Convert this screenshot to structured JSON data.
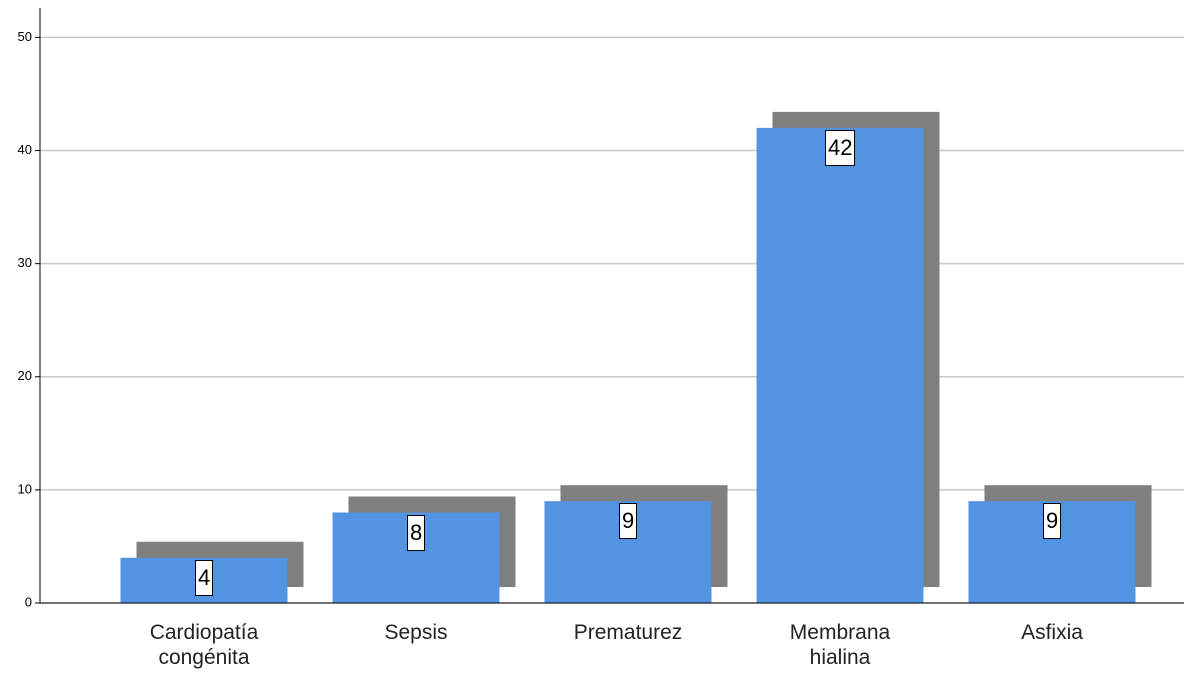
{
  "chart_data": {
    "type": "bar",
    "categories": [
      "Cardiopatía congénita",
      "Sepsis",
      "Prematurez",
      "Membrana hialina",
      "Asfixia"
    ],
    "values": [
      4,
      8,
      9,
      42,
      9
    ],
    "color": "#5294e2",
    "shadow_color": "#7f7f7f",
    "ylim": [
      0,
      52.6
    ],
    "yticks": [
      0,
      10,
      20,
      30,
      40,
      50
    ],
    "grid": true
  }
}
